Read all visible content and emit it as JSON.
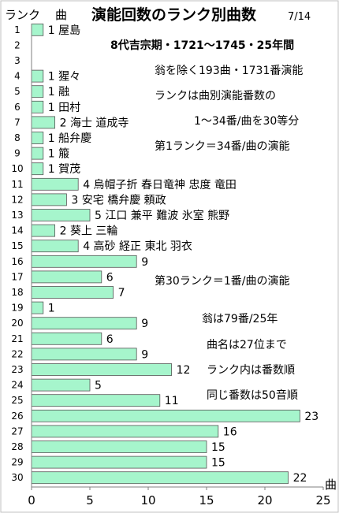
{
  "chart_data": {
    "type": "bar",
    "orientation": "horizontal",
    "title": "演能回数のランク別曲数",
    "title_date": "7/14",
    "ylabel": "ランク",
    "xlabel_top": "曲",
    "xlabel_end": "曲",
    "xlim": [
      0,
      25
    ],
    "x_ticks": [
      "0",
      "5",
      "10",
      "15",
      "20",
      "25"
    ],
    "grid": false,
    "legend": "none",
    "bar_color": "#A6F5CC",
    "categories": [
      "1",
      "2",
      "3",
      "4",
      "5",
      "6",
      "7",
      "8",
      "9",
      "10",
      "11",
      "12",
      "13",
      "14",
      "15",
      "16",
      "17",
      "18",
      "19",
      "20",
      "21",
      "22",
      "23",
      "24",
      "25",
      "26",
      "27",
      "28",
      "29",
      "30"
    ],
    "values": [
      1,
      0,
      0,
      1,
      1,
      1,
      2,
      1,
      1,
      1,
      4,
      3,
      5,
      2,
      4,
      9,
      6,
      7,
      1,
      9,
      6,
      9,
      12,
      5,
      11,
      23,
      16,
      15,
      15,
      22
    ],
    "bar_labels": [
      "1 屋島",
      "",
      "",
      "1 猩々",
      "1 融",
      "1 田村",
      "2 海士 道成寺",
      "1 船弁慶",
      "1 箙",
      "1 賀茂",
      "4 烏帽子折 春日竜神 忠度 竜田",
      "3 安宅 橋弁慶 頼政",
      "5 江口 兼平 難波 氷室 熊野",
      "2 葵上 三輪",
      "4 高砂 経正 東北 羽衣",
      "9",
      "6",
      "7",
      "1",
      "9",
      "6",
      "9",
      "12",
      "5",
      "11",
      "23",
      "16",
      "15",
      "15",
      "22"
    ],
    "annotations": [
      "8代吉宗期・1721〜1745・25年間",
      "翁を除く193曲・1731番演能",
      "ランクは曲別演能番数の",
      "1〜34番/曲を30等分",
      "第1ランク＝34番/曲の演能",
      "第30ランク＝1番/曲の演能",
      "翁は79番/25年",
      "曲名は27位まで",
      "ランク内は番数順",
      "同じ番数は50音順"
    ]
  }
}
